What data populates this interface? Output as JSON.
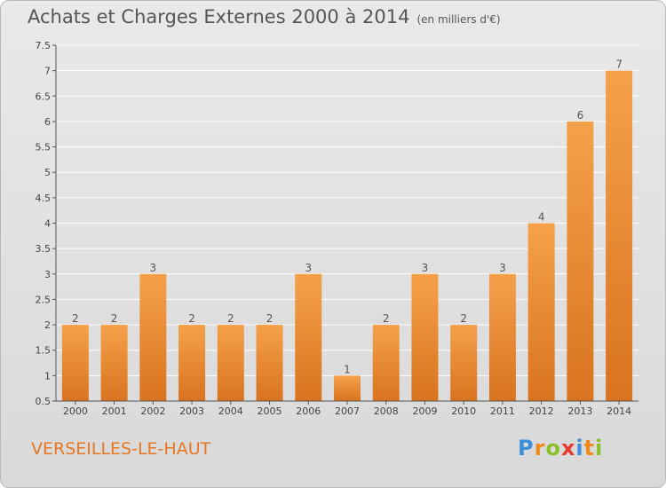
{
  "title": "Achats et Charges Externes 2000 à 2014",
  "unit": "(en milliers d'€)",
  "location": "VERSEILLES-LE-HAUT",
  "logo": "Proxiti",
  "colors": {
    "bar_top": "#f5a14a",
    "bar_bottom": "#d9731f",
    "axis": "#555555",
    "grid": "#ffffff"
  },
  "chart_data": {
    "type": "bar",
    "title": "Achats et Charges Externes 2000 à 2014",
    "xlabel": "",
    "ylabel": "",
    "categories": [
      "2000",
      "2001",
      "2002",
      "2003",
      "2004",
      "2005",
      "2006",
      "2007",
      "2008",
      "2009",
      "2010",
      "2011",
      "2012",
      "2013",
      "2014"
    ],
    "values": [
      2,
      2,
      3,
      2,
      2,
      2,
      3,
      1,
      2,
      3,
      2,
      3,
      4,
      6,
      7
    ],
    "ylim": [
      0.5,
      7.5
    ],
    "yticks": [
      0.5,
      1,
      1.5,
      2,
      2.5,
      3,
      3.5,
      4,
      4.5,
      5,
      5.5,
      6,
      6.5,
      7,
      7.5
    ],
    "ytick_labels": [
      "0.5",
      "1",
      "1.5",
      "2",
      "2.5",
      "3",
      "3.5",
      "4",
      "4.5",
      "5",
      "5.5",
      "6",
      "6.5",
      "7",
      "7.5"
    ],
    "grid": true,
    "legend": "none"
  }
}
